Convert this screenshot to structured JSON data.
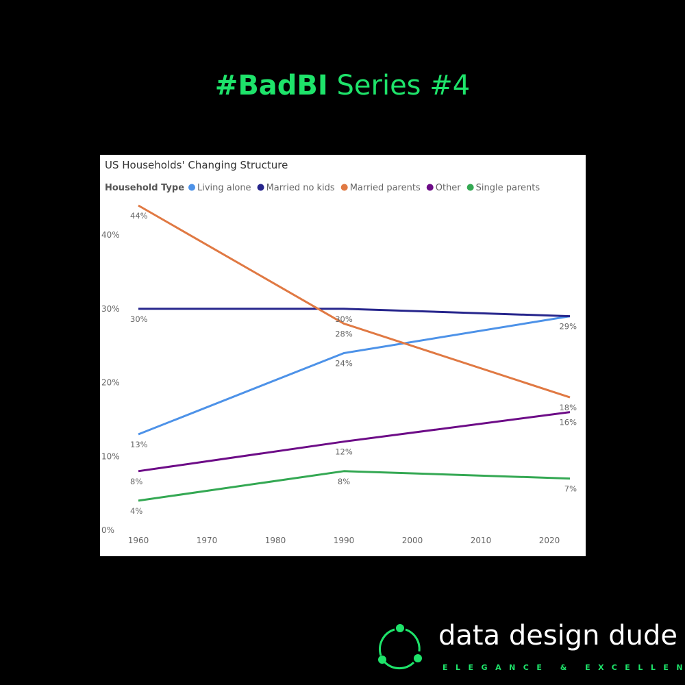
{
  "headline": {
    "bold": "#BadBI",
    "rest": " Series #4"
  },
  "brand": {
    "name": "data design dude",
    "tagline": "ELEGANCE & EXCELLENCE",
    "accent": "#1ee36a",
    "icon": "network-circle-icon"
  },
  "chart_data": {
    "type": "line",
    "title": "US Households' Changing Structure",
    "legend_title": "Household Type",
    "legend_position": "top-left",
    "grid": false,
    "x_ticks": [
      "1960",
      "1970",
      "1980",
      "1990",
      "2000",
      "2010",
      "2020"
    ],
    "x_range": [
      1960,
      2023
    ],
    "y_ticks": [
      "0%",
      "10%",
      "20%",
      "30%",
      "40%"
    ],
    "ylim": [
      0,
      44
    ],
    "x": [
      1960,
      1990,
      2023
    ],
    "series": [
      {
        "name": "Living alone",
        "color": "#4d92e8",
        "values": [
          13,
          24,
          29
        ],
        "labels": [
          "13%",
          "24%",
          ""
        ]
      },
      {
        "name": "Married no kids",
        "color": "#26258c",
        "values": [
          30,
          30,
          29
        ],
        "labels": [
          "30%",
          "30%",
          "29%"
        ]
      },
      {
        "name": "Married parents",
        "color": "#e07943",
        "values": [
          44,
          28,
          18
        ],
        "labels": [
          "44%",
          "28%",
          "18%"
        ]
      },
      {
        "name": "Other",
        "color": "#6d0c87",
        "values": [
          8,
          12,
          16
        ],
        "labels": [
          "8%",
          "12%",
          "16%"
        ]
      },
      {
        "name": "Single parents",
        "color": "#34a853",
        "values": [
          4,
          8,
          7
        ],
        "labels": [
          "4%",
          "8%",
          "7%"
        ]
      }
    ]
  }
}
